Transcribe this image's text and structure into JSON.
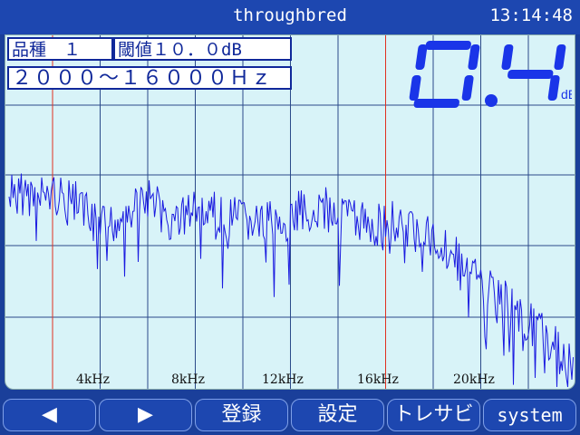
{
  "window": {
    "title": "throughbred",
    "clock": "13:14:48"
  },
  "labels": {
    "product": "品種　１",
    "threshold": "閾値１０．０dB",
    "freq_range": "２０００～１６０００Ｈｚ"
  },
  "reading": {
    "value": "0.4",
    "unit": "dB"
  },
  "chart_data": {
    "type": "line",
    "xlabel": "",
    "ylabel": "",
    "x_ticks": [
      "4kHz",
      "8kHz",
      "12kHz",
      "16kHz",
      "20kHz"
    ],
    "xlim": [
      2000,
      24000
    ],
    "markers_hz": [
      2000,
      16000
    ],
    "grid": true,
    "series_color": "#1a1ae0",
    "marker_color": "#e03020"
  },
  "toolbar": {
    "prev_label": "◀",
    "next_label": "▶",
    "register_label": "登録",
    "settings_label": "設定",
    "trace_label": "トレサビ",
    "system_label": "system"
  }
}
